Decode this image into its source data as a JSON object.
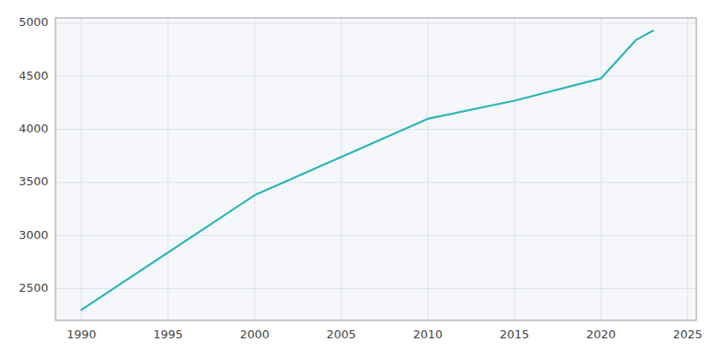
{
  "chart_data": {
    "type": "line",
    "x": [
      1990,
      2000,
      2010,
      2015,
      2020,
      2021,
      2022,
      2023
    ],
    "values": [
      2300,
      3380,
      4100,
      4270,
      4480,
      4660,
      4840,
      4930
    ],
    "color": "#2ab5b5",
    "xlim": [
      1988.5,
      2025.5
    ],
    "ylim": [
      2200,
      5050
    ],
    "xticks": [
      1990,
      1995,
      2000,
      2005,
      2010,
      2015,
      2020,
      2025
    ],
    "yticks": [
      2500,
      3000,
      3500,
      4000,
      4500,
      5000
    ],
    "grid": true
  }
}
